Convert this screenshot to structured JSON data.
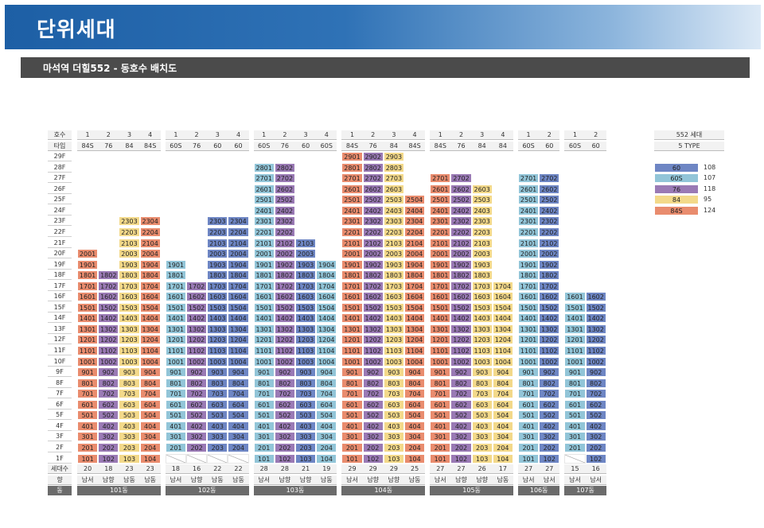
{
  "header": {
    "title": "단위세대"
  },
  "section": {
    "subtitle": "마석역 더힐552 - 동호수 배치도"
  },
  "labels": {
    "hosu": "호수",
    "type": "타입",
    "units": "세대수",
    "dir": "향",
    "dong": "동"
  },
  "floor_labels": [
    "29F",
    "28F",
    "27F",
    "26F",
    "25F",
    "24F",
    "23F",
    "22F",
    "21F",
    "20F",
    "19F",
    "18F",
    "17F",
    "16F",
    "15F",
    "14F",
    "13F",
    "12F",
    "11F",
    "10F",
    "9F",
    "8F",
    "7F",
    "6F",
    "5F",
    "4F",
    "3F",
    "2F",
    "1F"
  ],
  "colors": {
    "60": "#6e86c4",
    "60S": "#92c5d8",
    "76": "#9a7ab5",
    "84": "#f3d98a",
    "84S": "#e98c6e"
  },
  "legend": {
    "title": "552 세대",
    "subtitle": "5 TYPE",
    "items": [
      {
        "type": "60",
        "count": "108"
      },
      {
        "type": "60S",
        "count": "107"
      },
      {
        "type": "76",
        "count": "118"
      },
      {
        "type": "84",
        "count": "95"
      },
      {
        "type": "84S",
        "count": "124"
      }
    ]
  },
  "buildings": [
    {
      "dong": "101동",
      "lines": [
        {
          "ho": "1",
          "type": "84S",
          "min": 1,
          "max": 20,
          "count": "20",
          "dir": "남서"
        },
        {
          "ho": "2",
          "type": "76",
          "min": 1,
          "max": 18,
          "count": "18",
          "dir": "남향"
        },
        {
          "ho": "3",
          "type": "84",
          "min": 1,
          "max": 23,
          "count": "23",
          "dir": "남동"
        },
        {
          "ho": "4",
          "type": "84S",
          "min": 1,
          "max": 23,
          "count": "23",
          "dir": "남동"
        }
      ]
    },
    {
      "dong": "102동",
      "lines": [
        {
          "ho": "1",
          "type": "60S",
          "min": 2,
          "max": 19,
          "count": "18",
          "dir": "남서"
        },
        {
          "ho": "2",
          "type": "76",
          "min": 2,
          "max": 17,
          "count": "16",
          "dir": "남향"
        },
        {
          "ho": "3",
          "type": "60",
          "min": 2,
          "max": 23,
          "count": "22",
          "dir": "남동"
        },
        {
          "ho": "4",
          "type": "60",
          "min": 2,
          "max": 23,
          "count": "22",
          "dir": "남동"
        }
      ]
    },
    {
      "dong": "103동",
      "lines": [
        {
          "ho": "1",
          "type": "60S",
          "min": 1,
          "max": 28,
          "count": "28",
          "dir": "남서"
        },
        {
          "ho": "2",
          "type": "76",
          "min": 1,
          "max": 28,
          "count": "28",
          "dir": "남향"
        },
        {
          "ho": "3",
          "type": "60",
          "min": 1,
          "max": 21,
          "count": "21",
          "dir": "남향"
        },
        {
          "ho": "4",
          "type": "60S",
          "min": 1,
          "max": 19,
          "count": "19",
          "dir": "남동"
        }
      ]
    },
    {
      "dong": "104동",
      "lines": [
        {
          "ho": "1",
          "type": "84S",
          "min": 1,
          "max": 29,
          "count": "29",
          "dir": "남서"
        },
        {
          "ho": "2",
          "type": "76",
          "min": 1,
          "max": 29,
          "count": "29",
          "dir": "남향"
        },
        {
          "ho": "3",
          "type": "84",
          "min": 1,
          "max": 29,
          "count": "29",
          "dir": "남향"
        },
        {
          "ho": "4",
          "type": "84S",
          "min": 1,
          "max": 25,
          "count": "25",
          "dir": "남동"
        }
      ]
    },
    {
      "dong": "105동",
      "lines": [
        {
          "ho": "1",
          "type": "84S",
          "min": 1,
          "max": 27,
          "count": "27",
          "dir": "남서"
        },
        {
          "ho": "2",
          "type": "76",
          "min": 1,
          "max": 27,
          "count": "27",
          "dir": "남향"
        },
        {
          "ho": "3",
          "type": "84",
          "min": 1,
          "max": 26,
          "count": "26",
          "dir": "남향"
        },
        {
          "ho": "4",
          "type": "84",
          "min": 1,
          "max": 17,
          "count": "17",
          "dir": "남동"
        }
      ]
    },
    {
      "dong": "106동",
      "lines": [
        {
          "ho": "1",
          "type": "60S",
          "min": 1,
          "max": 27,
          "count": "27",
          "dir": "남서"
        },
        {
          "ho": "2",
          "type": "60",
          "min": 1,
          "max": 27,
          "count": "27",
          "dir": "남서"
        }
      ]
    },
    {
      "dong": "107동",
      "lines": [
        {
          "ho": "1",
          "type": "60S",
          "min": 2,
          "max": 16,
          "count": "15",
          "dir": "남서"
        },
        {
          "ho": "2",
          "type": "60",
          "min": 1,
          "max": 16,
          "count": "16",
          "dir": "남서"
        }
      ]
    }
  ]
}
